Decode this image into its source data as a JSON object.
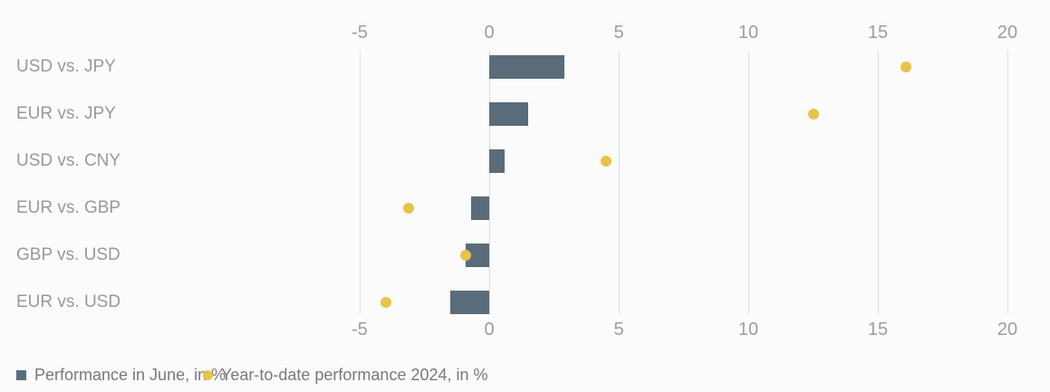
{
  "colors": {
    "background": "#fbfbfb",
    "bar": "#5a6c7a",
    "dot": "#e9c24a",
    "gridline": "#dcdcdc",
    "category_text": "#97999c",
    "tick_text": "#9b9da0",
    "legend_text": "#77797c"
  },
  "chart_data": {
    "type": "bar",
    "orientation": "horizontal",
    "title": "",
    "xlabel": "",
    "ylabel": "",
    "categories": [
      "USD vs. JPY",
      "EUR vs. JPY",
      "USD vs. CNY",
      "EUR vs. GBP",
      "GBP vs. USD",
      "EUR vs. USD"
    ],
    "series": [
      {
        "name": "Performance in June, in %",
        "marker": "square",
        "color": "#5a6c7a",
        "values": [
          2.9,
          1.5,
          0.6,
          -0.7,
          -0.9,
          -1.5
        ]
      },
      {
        "name": "Year-to-date performance 2024, in %",
        "marker": "circle",
        "color": "#e9c24a",
        "values": [
          16.1,
          12.5,
          4.5,
          -3.1,
          -0.9,
          -4.0
        ]
      }
    ],
    "x_ticks": [
      -5,
      0,
      5,
      10,
      15,
      20
    ],
    "x_tick_labels": [
      "-5",
      "0",
      "5",
      "10",
      "15",
      "20"
    ],
    "xlim": [
      -5,
      20
    ],
    "grid": true,
    "tick_labels_position": "top and bottom",
    "legend_position": "bottom"
  },
  "legend": {
    "items": [
      {
        "label": "Performance in June, in %",
        "marker": "square"
      },
      {
        "label": "Year-to-date performance 2024, in %",
        "marker": "circle"
      }
    ]
  }
}
